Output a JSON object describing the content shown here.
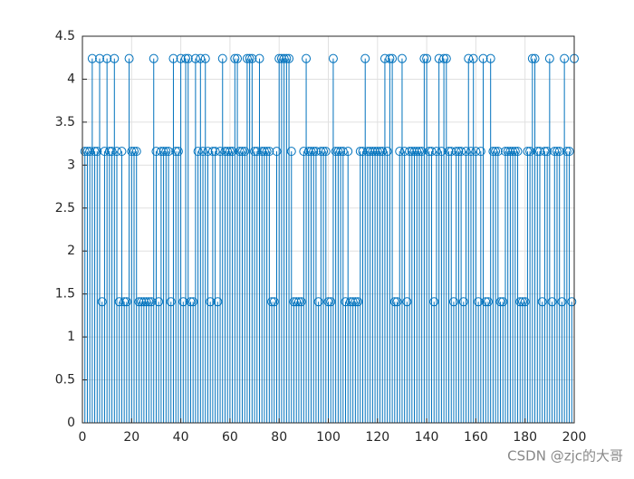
{
  "chart_data": {
    "type": "stem",
    "color": "#0072BD",
    "grid": true,
    "xlim": [
      0,
      200
    ],
    "xticks": [
      0,
      20,
      40,
      60,
      80,
      100,
      120,
      140,
      160,
      180,
      200
    ],
    "ylim": [
      0,
      4.5
    ],
    "yticks": [
      0,
      0.5,
      1,
      1.5,
      2,
      2.5,
      3,
      3.5,
      4,
      4.5
    ],
    "x": [
      1,
      2,
      3,
      4,
      5,
      6,
      7,
      8,
      9,
      10,
      11,
      12,
      13,
      14,
      15,
      16,
      17,
      18,
      19,
      20,
      21,
      22,
      23,
      24,
      25,
      26,
      27,
      28,
      29,
      30,
      31,
      32,
      33,
      34,
      35,
      36,
      37,
      38,
      39,
      40,
      41,
      42,
      43,
      44,
      45,
      46,
      47,
      48,
      49,
      50,
      51,
      52,
      53,
      54,
      55,
      56,
      57,
      58,
      59,
      60,
      61,
      62,
      63,
      64,
      65,
      66,
      67,
      68,
      69,
      70,
      71,
      72,
      73,
      74,
      75,
      76,
      77,
      78,
      79,
      80,
      81,
      82,
      83,
      84,
      85,
      86,
      87,
      88,
      89,
      90,
      91,
      92,
      93,
      94,
      95,
      96,
      97,
      98,
      99,
      100,
      101,
      102,
      103,
      104,
      105,
      106,
      107,
      108,
      109,
      110,
      111,
      112,
      113,
      114,
      115,
      116,
      117,
      118,
      119,
      120,
      121,
      122,
      123,
      124,
      125,
      126,
      127,
      128,
      129,
      130,
      131,
      132,
      133,
      134,
      135,
      136,
      137,
      138,
      139,
      140,
      141,
      142,
      143,
      144,
      145,
      146,
      147,
      148,
      149,
      150,
      151,
      152,
      153,
      154,
      155,
      156,
      157,
      158,
      159,
      160,
      161,
      162,
      163,
      164,
      165,
      166,
      167,
      168,
      169,
      170,
      171,
      172,
      173,
      174,
      175,
      176,
      177,
      178,
      179,
      180,
      181,
      182,
      183,
      184,
      185,
      186,
      187,
      188,
      189,
      190,
      191,
      192,
      193,
      194,
      195,
      196,
      197,
      198,
      199,
      200
    ],
    "values": [
      3.16,
      3.16,
      3.16,
      4.24,
      3.16,
      3.16,
      4.24,
      1.41,
      3.16,
      4.24,
      3.16,
      3.16,
      4.24,
      3.16,
      1.41,
      3.16,
      1.41,
      1.41,
      4.24,
      3.16,
      3.16,
      3.16,
      1.41,
      1.41,
      1.41,
      1.41,
      1.41,
      1.41,
      4.24,
      3.16,
      1.41,
      3.16,
      3.16,
      3.16,
      3.16,
      1.41,
      4.24,
      3.16,
      3.16,
      4.24,
      1.41,
      4.24,
      4.24,
      1.41,
      1.41,
      4.24,
      3.16,
      4.24,
      3.16,
      4.24,
      3.16,
      1.41,
      3.16,
      3.16,
      1.41,
      3.16,
      4.24,
      3.16,
      3.16,
      3.16,
      3.16,
      4.24,
      4.24,
      3.16,
      3.16,
      3.16,
      4.24,
      4.24,
      4.24,
      3.16,
      3.16,
      4.24,
      3.16,
      3.16,
      3.16,
      3.16,
      1.41,
      1.41,
      3.16,
      4.24,
      4.24,
      4.24,
      4.24,
      4.24,
      3.16,
      1.41,
      1.41,
      1.41,
      1.41,
      3.16,
      4.24,
      3.16,
      3.16,
      3.16,
      3.16,
      1.41,
      3.16,
      3.16,
      3.16,
      1.41,
      1.41,
      4.24,
      3.16,
      3.16,
      3.16,
      3.16,
      1.41,
      3.16,
      1.41,
      1.41,
      1.41,
      1.41,
      3.16,
      3.16,
      4.24,
      3.16,
      3.16,
      3.16,
      3.16,
      3.16,
      3.16,
      3.16,
      4.24,
      3.16,
      4.24,
      4.24,
      1.41,
      1.41,
      3.16,
      4.24,
      3.16,
      1.41,
      3.16,
      3.16,
      3.16,
      3.16,
      3.16,
      3.16,
      4.24,
      4.24,
      3.16,
      3.16,
      1.41,
      3.16,
      4.24,
      3.16,
      4.24,
      4.24,
      3.16,
      3.16,
      1.41,
      3.16,
      3.16,
      3.16,
      1.41,
      3.16,
      4.24,
      3.16,
      4.24,
      3.16,
      1.41,
      3.16,
      4.24,
      1.41,
      1.41,
      4.24,
      3.16,
      3.16,
      3.16,
      1.41,
      1.41,
      3.16,
      3.16,
      3.16,
      3.16,
      3.16,
      3.16,
      1.41,
      1.41,
      1.41,
      3.16,
      3.16,
      4.24,
      4.24,
      3.16,
      3.16,
      1.41,
      3.16,
      3.16,
      4.24,
      1.41,
      3.16,
      3.16,
      3.16,
      1.41,
      4.24,
      3.16,
      3.16,
      1.41,
      4.24
    ]
  },
  "watermark": "CSDN @zjc的大哥"
}
